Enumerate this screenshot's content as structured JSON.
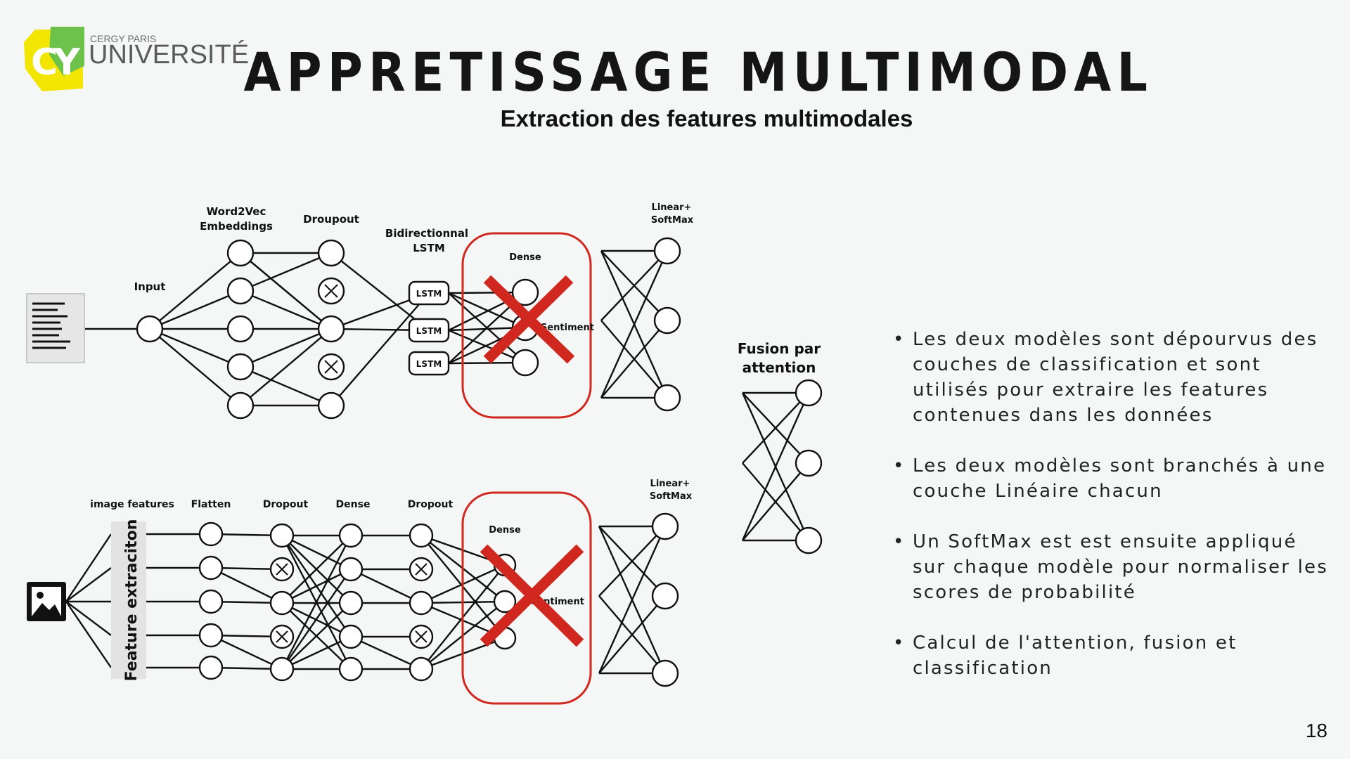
{
  "logo": {
    "line1": "CERGY PARIS",
    "line2": "UNIVERSITÉ",
    "monogram": "CY",
    "colors": {
      "yellow": "#f2e500",
      "green": "#6cc24a",
      "gray": "#5b5b5b"
    }
  },
  "title": "APPRETISSAGE MULTIMODAL",
  "subtitle": "Extraction des features multimodales",
  "text_model": {
    "input_label": "Input",
    "embeddings_label_1": "Word2Vec",
    "embeddings_label_2": "Embeddings",
    "dropout_label": "Droupout",
    "lstm_label_1": "Bidirectionnal",
    "lstm_label_2": "LSTM",
    "lstm_cell_label": "LSTM",
    "dense_label": "Dense",
    "sentiment_label": "Sentiment",
    "linear_label_1": "Linear+",
    "linear_label_2": "SoftMax"
  },
  "image_model": {
    "image_features_label": "image features",
    "feature_extraction_label": "Feature extraciton",
    "flatten_label": "Flatten",
    "dropout1_label": "Dropout",
    "dense_label": "Dense",
    "dropout2_label": "Dropout",
    "dense_removed_label": "Dense",
    "sentiment_label": "Sentiment",
    "linear_label_1": "Linear+",
    "linear_label_2": "SoftMax"
  },
  "fusion": {
    "label_1": "Fusion par",
    "label_2": "attention"
  },
  "bullets": [
    "Les deux modèles sont dépourvus des couches de classification et sont utilisés pour extraire les features contenues dans les données",
    "Les deux modèles sont branchés à une couche Linéaire chacun",
    "Un SoftMax est est ensuite appliqué sur chaque modèle pour normaliser les scores de probabilité",
    "Calcul de l'attention, fusion et classification"
  ],
  "page_number": "18",
  "colors": {
    "removed_box": "#d0281e",
    "cross": "#d0281e",
    "lines": "#111111"
  }
}
